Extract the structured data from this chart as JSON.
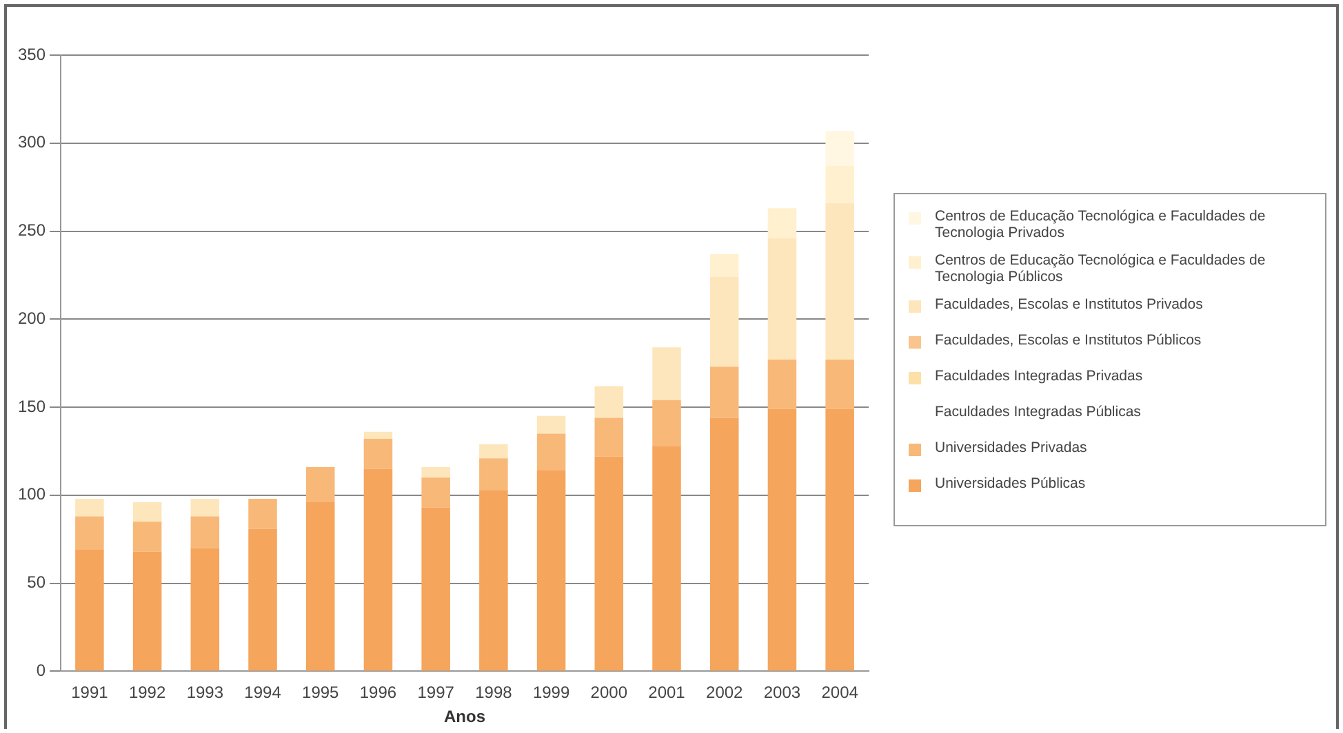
{
  "chart_data": {
    "type": "bar",
    "stacked": true,
    "xlabel": "Anos",
    "categories": [
      "1991",
      "1992",
      "1993",
      "1994",
      "1995",
      "1996",
      "1997",
      "1998",
      "1999",
      "2000",
      "2001",
      "2002",
      "2003",
      "2004"
    ],
    "series": [
      {
        "name": "Universidades Públicas",
        "color": "#f5a55c",
        "values": [
          69,
          68,
          70,
          81,
          96,
          115,
          93,
          103,
          114,
          122,
          128,
          144,
          149,
          149
        ]
      },
      {
        "name": "Universidades Privadas",
        "color": "#f8b878",
        "values": [
          19,
          17,
          18,
          17,
          20,
          17,
          17,
          18,
          21,
          22,
          26,
          29,
          28,
          28
        ]
      },
      {
        "name": "Faculdades Integradas Públicas",
        "values": [
          0,
          0,
          0,
          0,
          0,
          0,
          0,
          0,
          0,
          0,
          0,
          0,
          0,
          0
        ]
      },
      {
        "name": "Faculdades Integradas Privadas",
        "color": "#fde0a8",
        "values": [
          0,
          0,
          0,
          0,
          0,
          0,
          0,
          0,
          0,
          0,
          0,
          0,
          0,
          0
        ]
      },
      {
        "name": "Faculdades, Escolas e Institutos Públicos",
        "color": "#f9c48e",
        "values": [
          0,
          0,
          0,
          0,
          0,
          0,
          0,
          0,
          0,
          0,
          0,
          0,
          0,
          0
        ]
      },
      {
        "name": "Faculdades, Escolas e Institutos Privados",
        "color": "#fde6bb",
        "values": [
          10,
          11,
          10,
          0,
          0,
          4,
          6,
          8,
          10,
          18,
          30,
          51,
          69,
          89
        ]
      },
      {
        "name": "Centros de Educação Tecnológica e Faculdades de Tecnologia Públicos",
        "color": "#fff0cf",
        "values": [
          0,
          0,
          0,
          0,
          0,
          0,
          0,
          0,
          0,
          0,
          0,
          13,
          17,
          21
        ]
      },
      {
        "name": "Centros de Educação Tecnológica e Faculdades de Tecnologia Privados",
        "color": "#fff7e2",
        "values": [
          0,
          0,
          0,
          0,
          0,
          0,
          0,
          0,
          0,
          0,
          0,
          0,
          0,
          20
        ]
      }
    ],
    "ylim": [
      0,
      350
    ],
    "yticks": [
      0,
      50,
      100,
      150,
      200,
      250,
      300,
      350
    ],
    "grid": "y",
    "legend": "right"
  }
}
